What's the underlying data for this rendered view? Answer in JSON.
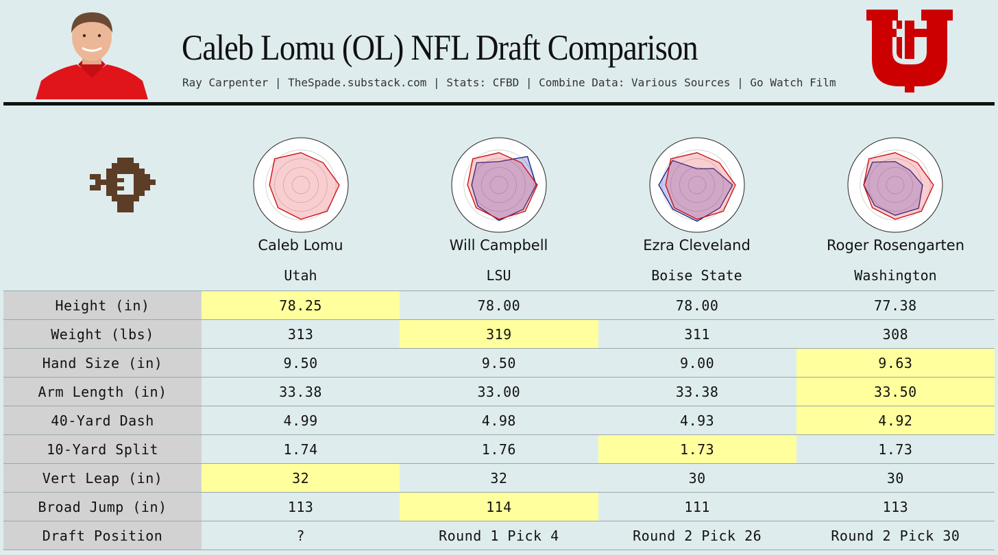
{
  "header": {
    "title": "Caleb Lomu (OL) NFL Draft Comparison",
    "subtitle": "Ray Carpenter | TheSpade.substack.com | Stats: CFBD | Combine Data: Various Sources | Go Watch Film"
  },
  "colors": {
    "background": "#dfecee",
    "highlight": "#ffff9e",
    "label_bg": "#d2d2d2",
    "utah_red": "#cc0000",
    "prospect_line": "#cc1111",
    "comp_line": "#1a2a8a",
    "mark_brown": "#5c3d26"
  },
  "icons": {
    "player_photo": "player-headshot",
    "team_logo": "utah-utes-logo",
    "brand_mark": "spade-pixel-logo"
  },
  "players": [
    {
      "name": "Caleb Lomu",
      "school": "Utah"
    },
    {
      "name": "Will Campbell",
      "school": "LSU"
    },
    {
      "name": "Ezra Cleveland",
      "school": "Boise State"
    },
    {
      "name": "Roger Rosengarten",
      "school": "Washington"
    }
  ],
  "radars": [
    {
      "prospect": [
        0.8,
        0.78,
        0.95,
        0.92,
        0.85,
        0.8,
        0.78,
        0.92
      ],
      "comp": null
    },
    {
      "prospect": [
        0.8,
        0.78,
        0.95,
        0.92,
        0.85,
        0.8,
        0.78,
        0.92
      ],
      "comp": [
        0.58,
        1.0,
        0.92,
        0.85,
        0.88,
        0.74,
        0.68,
        0.78
      ]
    },
    {
      "prospect": [
        0.8,
        0.78,
        0.95,
        0.92,
        0.85,
        0.8,
        0.78,
        0.92
      ],
      "comp": [
        0.4,
        0.58,
        0.88,
        0.8,
        0.9,
        0.85,
        0.95,
        0.86
      ]
    },
    {
      "prospect": [
        0.8,
        0.78,
        0.95,
        0.92,
        0.85,
        0.8,
        0.78,
        0.92
      ],
      "comp": [
        0.58,
        0.52,
        0.68,
        0.82,
        0.75,
        0.72,
        0.78,
        0.8
      ]
    }
  ],
  "table": {
    "rows": [
      {
        "label": "Height (in)",
        "values": [
          "78.25",
          "78.00",
          "78.00",
          "77.38"
        ],
        "highlight": 0
      },
      {
        "label": "Weight (lbs)",
        "values": [
          "313",
          "319",
          "311",
          "308"
        ],
        "highlight": 1
      },
      {
        "label": "Hand Size (in)",
        "values": [
          "9.50",
          "9.50",
          "9.00",
          "9.63"
        ],
        "highlight": 3
      },
      {
        "label": "Arm Length (in)",
        "values": [
          "33.38",
          "33.00",
          "33.38",
          "33.50"
        ],
        "highlight": 3
      },
      {
        "label": "40-Yard Dash",
        "values": [
          "4.99",
          "4.98",
          "4.93",
          "4.92"
        ],
        "highlight": 3
      },
      {
        "label": "10-Yard Split",
        "values": [
          "1.74",
          "1.76",
          "1.73",
          "1.73"
        ],
        "highlight": 2
      },
      {
        "label": "Vert Leap (in)",
        "values": [
          "32",
          "32",
          "30",
          "30"
        ],
        "highlight": 0
      },
      {
        "label": "Broad Jump (in)",
        "values": [
          "113",
          "114",
          "111",
          "113"
        ],
        "highlight": 1
      },
      {
        "label": "Draft Position",
        "values": [
          "?",
          "Round 1 Pick 4",
          "Round 2 Pick 26",
          "Round 2 Pick 30"
        ],
        "highlight": -1
      }
    ]
  }
}
